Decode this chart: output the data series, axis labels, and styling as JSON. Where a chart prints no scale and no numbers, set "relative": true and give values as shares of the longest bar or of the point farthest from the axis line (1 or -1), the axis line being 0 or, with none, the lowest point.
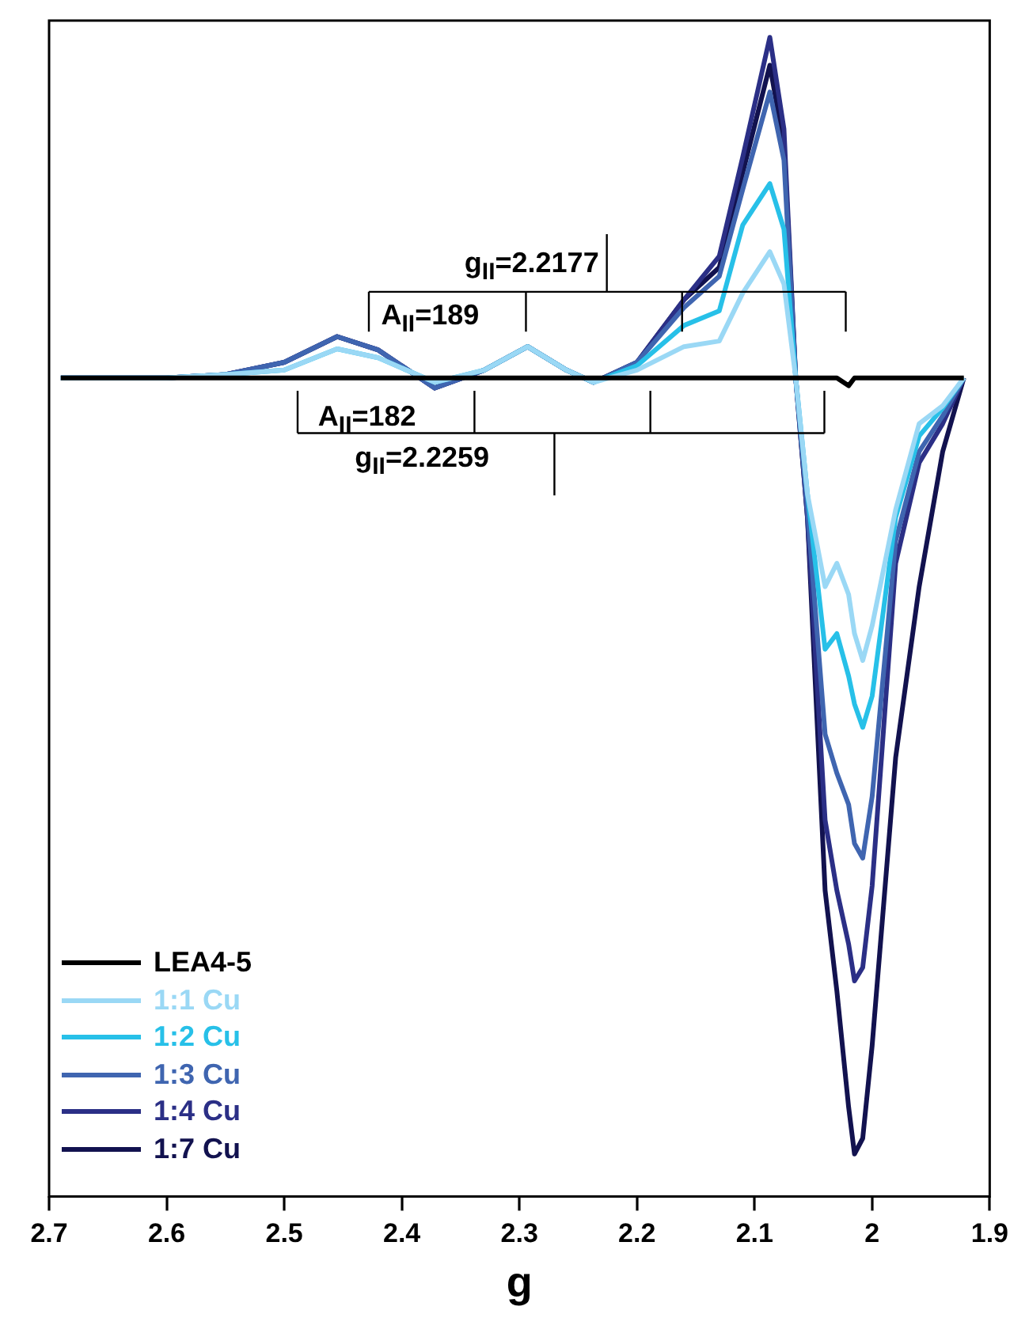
{
  "chart_data": {
    "type": "line",
    "relative": true,
    "xlabel": "g",
    "legend": "bottom left",
    "grid": false,
    "xlim": [
      2.7,
      1.9
    ],
    "xticks": [
      2.7,
      2.6,
      2.5,
      2.4,
      2.3,
      2.2,
      2.1,
      2,
      1.9
    ],
    "x": [
      2.69,
      2.6,
      2.55,
      2.5,
      2.455,
      2.42,
      2.372,
      2.33,
      2.293,
      2.26,
      2.237,
      2.2,
      2.16,
      2.13,
      2.11,
      2.087,
      2.075,
      2.065,
      2.055,
      2.04,
      2.03,
      2.02,
      2.015,
      2.008,
      2.0,
      1.98,
      1.96,
      1.94,
      1.922
    ],
    "series": [
      {
        "name": "LEA4-5",
        "color": "#000000",
        "values": [
          0.695,
          0.695,
          0.695,
          0.695,
          0.695,
          0.695,
          0.695,
          0.695,
          0.695,
          0.695,
          0.695,
          0.695,
          0.695,
          0.695,
          0.695,
          0.695,
          0.695,
          0.695,
          0.695,
          0.695,
          0.695,
          0.688,
          0.695,
          0.695,
          0.695,
          0.695,
          0.695,
          0.695,
          0.695
        ]
      },
      {
        "name": "1:1 Cu",
        "color": "#9ad8f5",
        "values": [
          0.695,
          0.695,
          0.698,
          0.702,
          0.721,
          0.713,
          0.691,
          0.702,
          0.723,
          0.702,
          0.691,
          0.702,
          0.723,
          0.728,
          0.771,
          0.808,
          0.779,
          0.695,
          0.591,
          0.508,
          0.529,
          0.501,
          0.466,
          0.442,
          0.473,
          0.577,
          0.654,
          0.67,
          0.695
        ]
      },
      {
        "name": "1:2 Cu",
        "color": "#27c0e8",
        "values": [
          0.695,
          0.695,
          0.698,
          0.702,
          0.721,
          0.713,
          0.691,
          0.702,
          0.723,
          0.702,
          0.691,
          0.706,
          0.742,
          0.755,
          0.832,
          0.869,
          0.828,
          0.695,
          0.591,
          0.452,
          0.466,
          0.428,
          0.403,
          0.382,
          0.41,
          0.57,
          0.643,
          0.668,
          0.695
        ]
      },
      {
        "name": "1:3 Cu",
        "color": "#3f65b0",
        "values": [
          0.695,
          0.695,
          0.698,
          0.709,
          0.732,
          0.72,
          0.686,
          0.702,
          0.723,
          0.702,
          0.691,
          0.709,
          0.758,
          0.786,
          0.864,
          0.951,
          0.89,
          0.695,
          0.577,
          0.376,
          0.341,
          0.313,
          0.278,
          0.265,
          0.32,
          0.549,
          0.629,
          0.661,
          0.695
        ]
      },
      {
        "name": "1:4 Cu",
        "color": "#2b2f86",
        "values": [
          0.695,
          0.695,
          0.698,
          0.709,
          0.732,
          0.72,
          0.686,
          0.702,
          0.723,
          0.702,
          0.691,
          0.709,
          0.765,
          0.804,
          0.893,
          1,
          0.918,
          0.695,
          0.57,
          0.299,
          0.236,
          0.188,
          0.155,
          0.167,
          0.24,
          0.529,
          0.619,
          0.654,
          0.695
        ]
      },
      {
        "name": "1:7 Cu",
        "color": "#12124f",
        "values": [
          0.695,
          0.695,
          0.698,
          0.709,
          0.732,
          0.72,
          0.686,
          0.702,
          0.723,
          0.702,
          0.691,
          0.709,
          0.765,
          0.794,
          0.879,
          0.975,
          0.904,
          0.695,
          0.57,
          0.236,
          0.146,
          0.042,
          0,
          0.014,
          0.097,
          0.355,
          0.508,
          0.629,
          0.695
        ]
      }
    ],
    "annotations": [
      "g$_{II}$=2.2177",
      "A$_{II}$=189",
      "A$_{II}$=182",
      "g$_{II}$=2.2259"
    ]
  }
}
